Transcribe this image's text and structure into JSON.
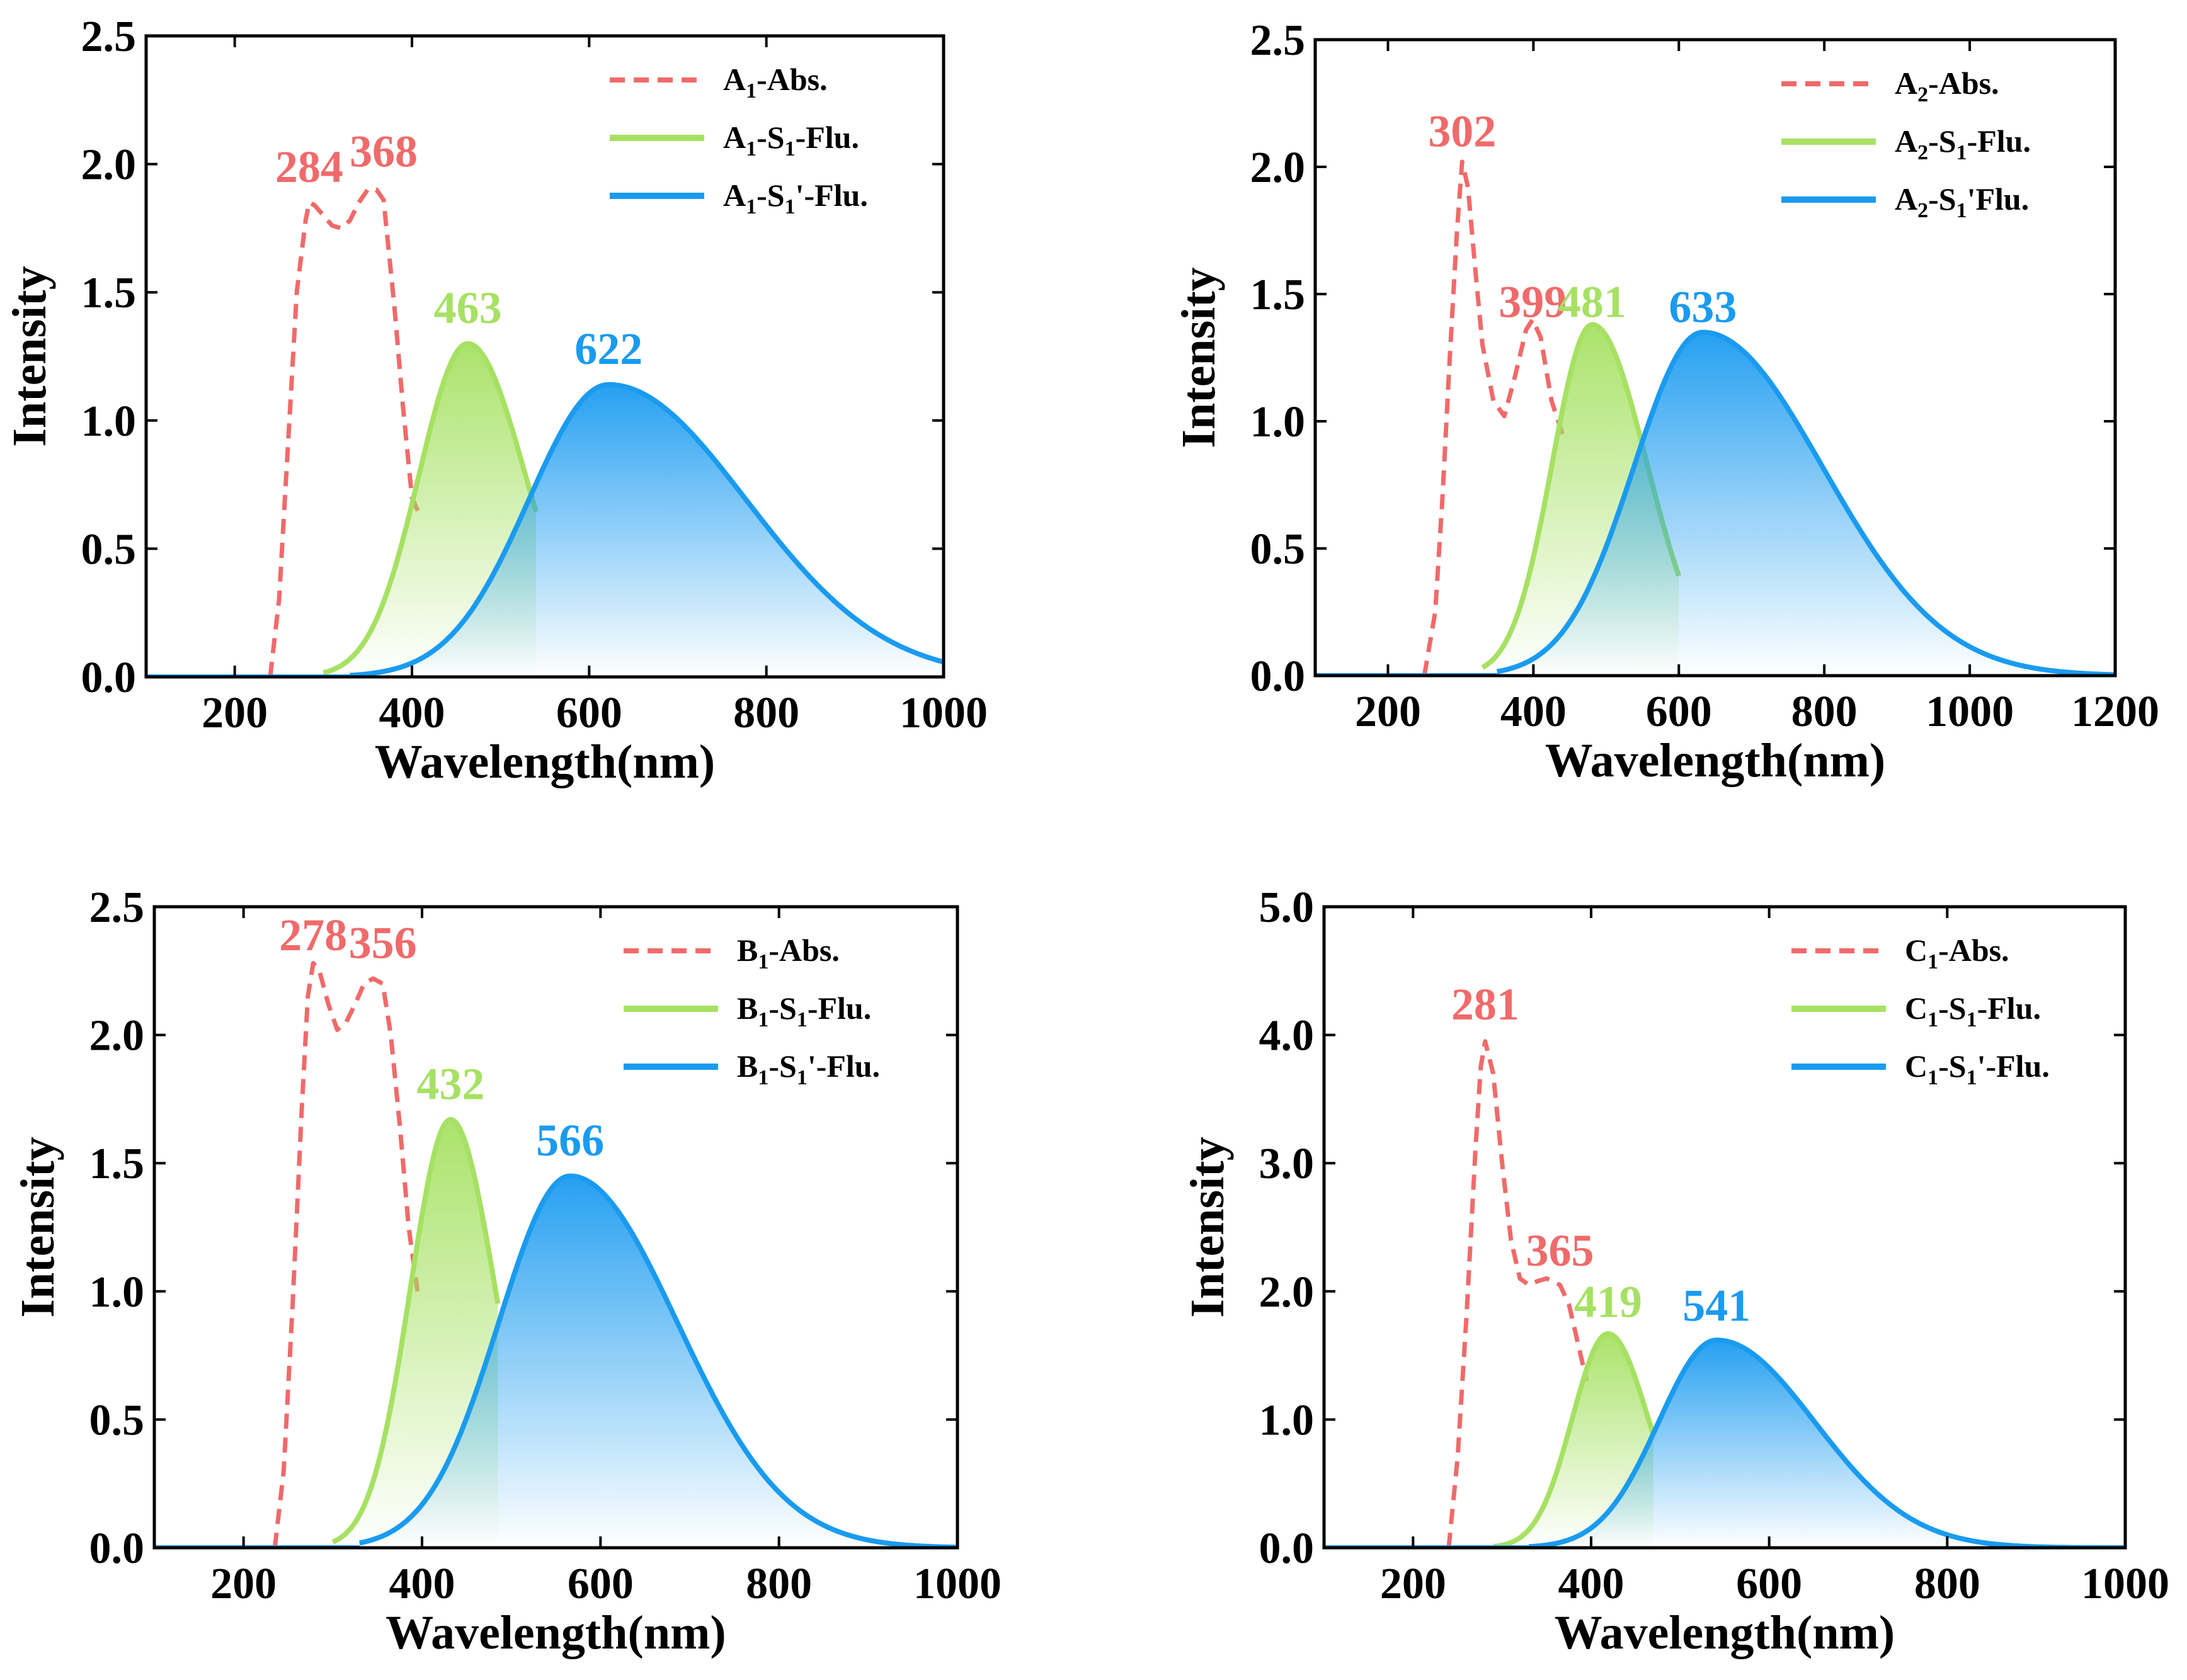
{
  "colors": {
    "abs": "#f06a6a",
    "green": "#a6e163",
    "blue": "#1a9bf0",
    "axis": "#000000",
    "background": "#ffffff"
  },
  "chart_data": [
    {
      "type": "line",
      "panel": "top-left",
      "xlabel": "Wavelength(nm)",
      "ylabel": "Intensity",
      "xlim": [
        100,
        1000
      ],
      "ylim": [
        0,
        2.5
      ],
      "xticks": [
        200,
        400,
        600,
        800,
        1000
      ],
      "yticks": [
        0,
        0.5,
        1,
        1.5,
        2,
        2.5
      ],
      "xtick_labels": [
        "200",
        "400",
        "600",
        "800",
        "1000"
      ],
      "ytick_labels": [
        "0.0",
        "0.5",
        "1.0",
        "1.5",
        "2.0",
        "2.5"
      ],
      "legend_position": "top-right",
      "series": [
        {
          "name": "A1-Abs.",
          "legend": {
            "sub_letter": "A",
            "sub_num": "1",
            "rest": "-Abs."
          },
          "style": "dashed",
          "color": "abs",
          "x": [
            240,
            250,
            260,
            270,
            280,
            284,
            290,
            300,
            310,
            320,
            330,
            340,
            350,
            360,
            368,
            380,
            390,
            400,
            410
          ],
          "y": [
            0.0,
            0.3,
            0.9,
            1.5,
            1.78,
            1.85,
            1.84,
            1.8,
            1.76,
            1.75,
            1.78,
            1.85,
            1.9,
            1.9,
            1.86,
            1.45,
            1.05,
            0.7,
            0.62
          ]
        },
        {
          "name": "A1-S1-Flu.",
          "legend": {
            "sub_letter": "A",
            "sub_num": "1",
            "rest": "-S",
            "sub_num2": "1",
            "rest2": "-Flu."
          },
          "style": "filled",
          "color": "green",
          "peak": 463,
          "amp": 1.3,
          "sl": 55,
          "sr": 65,
          "x_start": 300,
          "x_end": 540
        },
        {
          "name": "A1-S1'-Flu.",
          "legend": {
            "sub_letter": "A",
            "sub_num": "1",
            "rest": "-S",
            "sub_num2": "1",
            "rest2": "'-Flu."
          },
          "style": "filled",
          "color": "blue",
          "peak": 622,
          "amp": 1.14,
          "sl": 90,
          "sr": 155,
          "x_start": 330,
          "x_end": 1000
        }
      ],
      "annotations": [
        {
          "text": "284",
          "x": 284,
          "y": 1.93,
          "color": "abs"
        },
        {
          "text": "368",
          "x": 368,
          "y": 1.99,
          "color": "abs"
        },
        {
          "text": "463",
          "x": 463,
          "y": 1.38,
          "color": "green"
        },
        {
          "text": "622",
          "x": 622,
          "y": 1.22,
          "color": "blue"
        }
      ]
    },
    {
      "type": "line",
      "panel": "top-right",
      "xlabel": "Wavelength(nm)",
      "ylabel": "Intensity",
      "xlim": [
        100,
        1200
      ],
      "ylim": [
        0,
        2.5
      ],
      "xticks": [
        200,
        400,
        600,
        800,
        1000,
        1200
      ],
      "yticks": [
        0,
        0.5,
        1,
        1.5,
        2,
        2.5
      ],
      "xtick_labels": [
        "200",
        "400",
        "600",
        "800",
        "1000",
        "1200"
      ],
      "ytick_labels": [
        "0.0",
        "0.5",
        "1.0",
        "1.5",
        "2.0",
        "2.5"
      ],
      "legend_position": "top-right",
      "series": [
        {
          "name": "A2-Abs.",
          "legend": {
            "sub_letter": "A",
            "sub_num": "2",
            "rest": "-Abs."
          },
          "style": "dashed",
          "color": "abs",
          "x": [
            250,
            265,
            275,
            285,
            295,
            302,
            310,
            320,
            330,
            345,
            360,
            375,
            390,
            399,
            410,
            425,
            440
          ],
          "y": [
            0.0,
            0.25,
            0.7,
            1.25,
            1.75,
            2.02,
            1.92,
            1.6,
            1.3,
            1.08,
            1.02,
            1.18,
            1.36,
            1.4,
            1.33,
            1.08,
            0.95
          ]
        },
        {
          "name": "A2-S1-Flu.",
          "legend": {
            "sub_letter": "A",
            "sub_num": "2",
            "rest": "-S",
            "sub_num2": "1",
            "rest2": "-Flu."
          },
          "style": "filled",
          "color": "green",
          "peak": 481,
          "amp": 1.38,
          "sl": 55,
          "sr": 75,
          "x_start": 330,
          "x_end": 600
        },
        {
          "name": "A2-S1'Flu.",
          "legend": {
            "sub_letter": "A",
            "sub_num": "2",
            "rest": "-S",
            "sub_num2": "1",
            "rest2": "'Flu."
          },
          "style": "filled",
          "color": "blue",
          "peak": 633,
          "amp": 1.35,
          "sl": 95,
          "sr": 165,
          "x_start": 350,
          "x_end": 1200
        }
      ],
      "annotations": [
        {
          "text": "302",
          "x": 302,
          "y": 2.08,
          "color": "abs"
        },
        {
          "text": "399",
          "x": 399,
          "y": 1.41,
          "color": "abs"
        },
        {
          "text": "481",
          "x": 481,
          "y": 1.41,
          "color": "green"
        },
        {
          "text": "633",
          "x": 633,
          "y": 1.39,
          "color": "blue"
        }
      ]
    },
    {
      "type": "line",
      "panel": "bottom-left",
      "xlabel": "Wavelength(nm)",
      "ylabel": "Intensity",
      "xlim": [
        100,
        1000
      ],
      "ylim": [
        0,
        2.5
      ],
      "xticks": [
        200,
        400,
        600,
        800,
        1000
      ],
      "yticks": [
        0,
        0.5,
        1,
        1.5,
        2,
        2.5
      ],
      "xtick_labels": [
        "200",
        "400",
        "600",
        "800",
        "1000"
      ],
      "ytick_labels": [
        "0.0",
        "0.5",
        "1.0",
        "1.5",
        "2.0",
        "2.5"
      ],
      "legend_position": "top-right",
      "series": [
        {
          "name": "B1-Abs.",
          "legend": {
            "sub_letter": "B",
            "sub_num": "1",
            "rest": "-Abs."
          },
          "style": "dashed",
          "color": "abs",
          "x": [
            235,
            245,
            255,
            265,
            272,
            278,
            285,
            295,
            305,
            315,
            325,
            335,
            345,
            356,
            365,
            375,
            385,
            395
          ],
          "y": [
            0.0,
            0.3,
            0.95,
            1.7,
            2.15,
            2.28,
            2.25,
            2.12,
            2.02,
            2.05,
            2.12,
            2.2,
            2.22,
            2.2,
            2.0,
            1.65,
            1.25,
            1.0
          ]
        },
        {
          "name": "B1-S1-Flu.",
          "legend": {
            "sub_letter": "B",
            "sub_num": "1",
            "rest": "-S",
            "sub_num2": "1",
            "rest2": "-Flu."
          },
          "style": "filled",
          "color": "green",
          "peak": 432,
          "amp": 1.67,
          "sl": 45,
          "sr": 50,
          "x_start": 300,
          "x_end": 485
        },
        {
          "name": "B1-S1'-Flu.",
          "legend": {
            "sub_letter": "B",
            "sub_num": "1",
            "rest": "-S",
            "sub_num2": "1",
            "rest2": "'-Flu."
          },
          "style": "filled",
          "color": "blue",
          "peak": 566,
          "amp": 1.45,
          "sl": 80,
          "sr": 120,
          "x_start": 330,
          "x_end": 1000
        }
      ],
      "annotations": [
        {
          "text": "278",
          "x": 278,
          "y": 2.33,
          "color": "abs"
        },
        {
          "text": "356",
          "x": 356,
          "y": 2.3,
          "color": "abs"
        },
        {
          "text": "432",
          "x": 432,
          "y": 1.75,
          "color": "green"
        },
        {
          "text": "566",
          "x": 566,
          "y": 1.53,
          "color": "blue"
        }
      ]
    },
    {
      "type": "line",
      "panel": "bottom-right",
      "xlabel": "Wavelength(nm)",
      "ylabel": "Intensity",
      "xlim": [
        100,
        1000
      ],
      "ylim": [
        0,
        5.0
      ],
      "xticks": [
        200,
        400,
        600,
        800,
        1000
      ],
      "yticks": [
        0,
        1,
        2,
        3,
        4,
        5
      ],
      "xtick_labels": [
        "200",
        "400",
        "600",
        "800",
        "1000"
      ],
      "ytick_labels": [
        "0.0",
        "1.0",
        "2.0",
        "3.0",
        "4.0",
        "5.0"
      ],
      "legend_position": "top-right",
      "series": [
        {
          "name": "C1-Abs.",
          "legend": {
            "sub_letter": "C",
            "sub_num": "1",
            "rest": "-Abs."
          },
          "style": "dashed",
          "color": "abs",
          "x": [
            240,
            250,
            260,
            270,
            276,
            281,
            290,
            300,
            310,
            320,
            330,
            340,
            350,
            365,
            375,
            385,
            395
          ],
          "y": [
            0.0,
            0.7,
            1.8,
            3.1,
            3.75,
            3.95,
            3.7,
            3.0,
            2.4,
            2.1,
            2.05,
            2.08,
            2.1,
            2.05,
            1.9,
            1.6,
            1.3
          ]
        },
        {
          "name": "C1-S1-Flu.",
          "legend": {
            "sub_letter": "C",
            "sub_num": "1",
            "rest": "-S",
            "sub_num2": "1",
            "rest2": "-Flu."
          },
          "style": "filled",
          "color": "green",
          "peak": 419,
          "amp": 1.67,
          "sl": 40,
          "sr": 45,
          "x_start": 290,
          "x_end": 470
        },
        {
          "name": "C1-S1'-Flu.",
          "legend": {
            "sub_letter": "C",
            "sub_num": "1",
            "rest": "-S",
            "sub_num2": "1",
            "rest2": "'-Flu."
          },
          "style": "filled",
          "color": "blue",
          "peak": 541,
          "amp": 1.62,
          "sl": 65,
          "sr": 110,
          "x_start": 330,
          "x_end": 1000
        }
      ],
      "annotations": [
        {
          "text": "281",
          "x": 281,
          "y": 4.12,
          "color": "abs"
        },
        {
          "text": "365",
          "x": 365,
          "y": 2.2,
          "color": "abs"
        },
        {
          "text": "419",
          "x": 419,
          "y": 1.8,
          "color": "green"
        },
        {
          "text": "541",
          "x": 541,
          "y": 1.77,
          "color": "blue"
        }
      ]
    }
  ]
}
